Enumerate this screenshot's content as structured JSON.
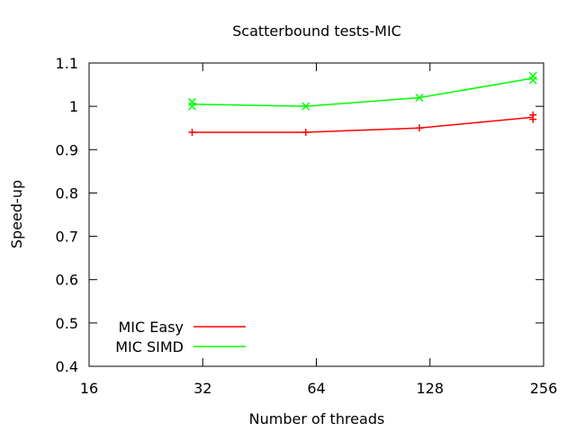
{
  "chart_data": {
    "type": "line",
    "title": "Scatterbound tests-MIC",
    "xlabel": "Number of threads",
    "ylabel": "Speed-up",
    "x_scale": "log2",
    "xlim": [
      16,
      256
    ],
    "ylim": [
      0.4,
      1.1
    ],
    "x_ticks": [
      16,
      32,
      64,
      128,
      256
    ],
    "x_tick_labels": [
      "16",
      "32",
      "64",
      "128",
      "256"
    ],
    "y_ticks": [
      0.4,
      0.5,
      0.6,
      0.7,
      0.8,
      0.9,
      1.0,
      1.1
    ],
    "y_tick_labels": [
      "0.4",
      "0.5",
      "0.6",
      "0.7",
      "0.8",
      "0.9",
      "1",
      "1.1"
    ],
    "grid": false,
    "legend_position": "bottom-left",
    "series": [
      {
        "name": "MIC Easy",
        "color": "#ff0000",
        "marker": "plus",
        "line_x": [
          30,
          60,
          120,
          240
        ],
        "line_y": [
          0.94,
          0.94,
          0.95,
          0.975
        ],
        "points": [
          {
            "x": 30,
            "y": 0.94
          },
          {
            "x": 60,
            "y": 0.94
          },
          {
            "x": 120,
            "y": 0.95
          },
          {
            "x": 240,
            "y": 0.97
          },
          {
            "x": 240,
            "y": 0.98
          }
        ]
      },
      {
        "name": "MIC SIMD",
        "color": "#00ff00",
        "marker": "cross",
        "line_x": [
          30,
          60,
          120,
          240
        ],
        "line_y": [
          1.005,
          1.0,
          1.02,
          1.065
        ],
        "points": [
          {
            "x": 30,
            "y": 1.0
          },
          {
            "x": 30,
            "y": 1.01
          },
          {
            "x": 60,
            "y": 1.0
          },
          {
            "x": 120,
            "y": 1.02
          },
          {
            "x": 240,
            "y": 1.06
          },
          {
            "x": 240,
            "y": 1.07
          }
        ]
      }
    ]
  }
}
